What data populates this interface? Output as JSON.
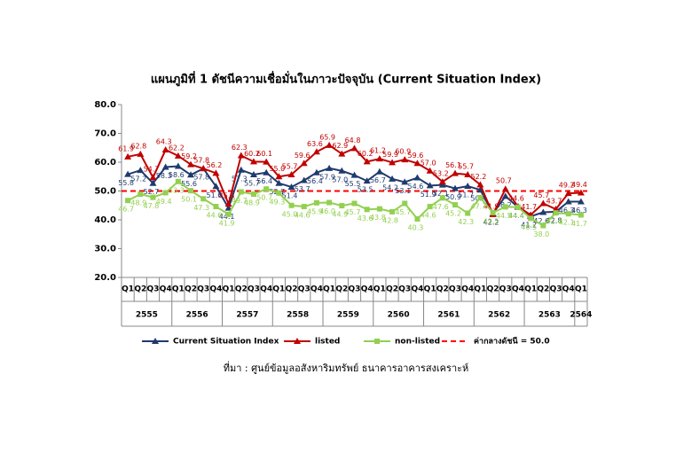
{
  "chart_data": {
    "type": "line",
    "title": "แผนภูมิที่ 1 ดัชนีความเชื่อมั่นในภาวะปัจจุบัน (Current Situation Index)",
    "source": "ที่มา : ศูนย์ข้อมูลอสังหาริมทรัพย์ ธนาคารอาคารสงเคราะห์",
    "categories": [
      "Q1",
      "Q2",
      "Q3",
      "Q4",
      "Q1",
      "Q2",
      "Q3",
      "Q4",
      "Q1",
      "Q2",
      "Q3",
      "Q4",
      "Q1",
      "Q2",
      "Q3",
      "Q4",
      "Q1",
      "Q2",
      "Q3",
      "Q4",
      "Q1",
      "Q2",
      "Q3",
      "Q4",
      "Q1",
      "Q2",
      "Q3",
      "Q4",
      "Q1",
      "Q2",
      "Q3",
      "Q4",
      "Q1",
      "Q2",
      "Q3",
      "Q4",
      "Q1"
    ],
    "years": [
      "2555",
      "2556",
      "2557",
      "2558",
      "2559",
      "2560",
      "2561",
      "2562",
      "2563",
      "2564"
    ],
    "ylim": [
      20,
      80
    ],
    "yticks": [
      {
        "value": 20,
        "label": "20.0"
      },
      {
        "value": 30,
        "label": "30.0"
      },
      {
        "value": 40,
        "label": "40.0"
      },
      {
        "value": 50,
        "label": "50.0"
      },
      {
        "value": 60,
        "label": "60.0"
      },
      {
        "value": 70,
        "label": "70.0"
      },
      {
        "value": 80,
        "label": "80.0"
      }
    ],
    "reference_line": {
      "name": "ค่ากลางดัชนี = 50.0",
      "value": 50,
      "color": "#ff0000"
    },
    "series": [
      {
        "name": "Current Situation Index",
        "color": "#1f3a6e",
        "marker": "triangle",
        "values": [
          55.8,
          57.2,
          52.7,
          58.3,
          58.6,
          55.6,
          57.8,
          51.6,
          44.1,
          57.3,
          55.7,
          56.4,
          52.7,
          51.4,
          53.7,
          56.4,
          57.9,
          57.0,
          55.5,
          53.5,
          56.7,
          54.2,
          53.1,
          54.6,
          51.9,
          52.1,
          50.9,
          51.7,
          50.4,
          42.2,
          48.2,
          44.4,
          41.2,
          42.6,
          42.8,
          46.3,
          46.3
        ],
        "value_labels": [
          "55.8",
          "57.2",
          "52.7",
          "58.3",
          "58.6",
          "55.6",
          "57.8",
          "51.6",
          "44.1",
          "57.3",
          "55.7",
          "56.4",
          "52.7",
          "51.4",
          "53.7",
          "56.4",
          "57.9",
          "57.0",
          "55.5",
          "53.5",
          "56.7",
          "54.2",
          "53.1",
          "54.6",
          "51.9",
          "52.1",
          "50.9",
          "51.7",
          "50.4",
          "42.2",
          "48.2",
          "44.4",
          "41.2",
          "42.6",
          "42.8",
          "46.3",
          "46.3"
        ]
      },
      {
        "name": "listed",
        "color": "#c00000",
        "marker": "triangle",
        "values": [
          61.9,
          62.8,
          54.7,
          64.3,
          62.2,
          59.2,
          57.8,
          56.2,
          45.5,
          62.3,
          60.2,
          60.1,
          55.0,
          55.7,
          59.6,
          63.6,
          65.9,
          62.9,
          64.8,
          60.2,
          61.2,
          59.9,
          60.9,
          59.6,
          57.0,
          53.2,
          56.1,
          55.7,
          52.2,
          41.9,
          50.7,
          44.6,
          41.7,
          45.7,
          43.7,
          49.2,
          49.4
        ],
        "value_labels": [
          "61.9",
          "62.8",
          "54.7",
          "64.3",
          "62.2",
          "59.2",
          "57.8",
          "56.2",
          "45.5",
          "62.3",
          "60.2",
          "60.1",
          "55.0",
          "55.7",
          "59.6",
          "63.6",
          "65.9",
          "62.9",
          "64.8",
          "60.2",
          "61.2",
          "59.9",
          "60.9",
          "59.6",
          "57.0",
          "53.2",
          "56.1",
          "55.7",
          "52.2",
          "41.9",
          "50.7",
          "44.6",
          "41.7",
          "45.7",
          "43.7",
          "49.2",
          "49.4"
        ]
      },
      {
        "name": "non-listed",
        "color": "#92d050",
        "marker": "square",
        "values": [
          46.7,
          48.9,
          47.8,
          49.4,
          53.3,
          50.1,
          47.3,
          44.6,
          41.9,
          49.7,
          48.9,
          50.7,
          49.3,
          45.0,
          44.6,
          45.9,
          46.0,
          44.9,
          45.7,
          43.6,
          43.8,
          42.8,
          45.7,
          40.3,
          44.6,
          47.6,
          45.2,
          42.3,
          47.7,
          42.5,
          44.5,
          44.4,
          40.5,
          38.0,
          42.4,
          42.1,
          41.7
        ],
        "value_labels": [
          "46.7",
          "48.9",
          "47.8",
          "49.4",
          "53.3",
          "50.1",
          "47.3",
          "44.6",
          "41.9",
          "49.7",
          "48.9",
          "50.7",
          "49.3",
          "45.0",
          "44.6",
          "45.9",
          "46.0",
          "44.9",
          "45.7",
          "43.6",
          "43.8",
          "42.8",
          "45.7",
          "40.3",
          "44.6",
          "47.6",
          "45.2",
          "42.3",
          "47.7",
          "42.5",
          "44.5",
          "44.4",
          "40.5",
          "38.0",
          "42.4",
          "42.1",
          "41.7"
        ]
      }
    ]
  }
}
